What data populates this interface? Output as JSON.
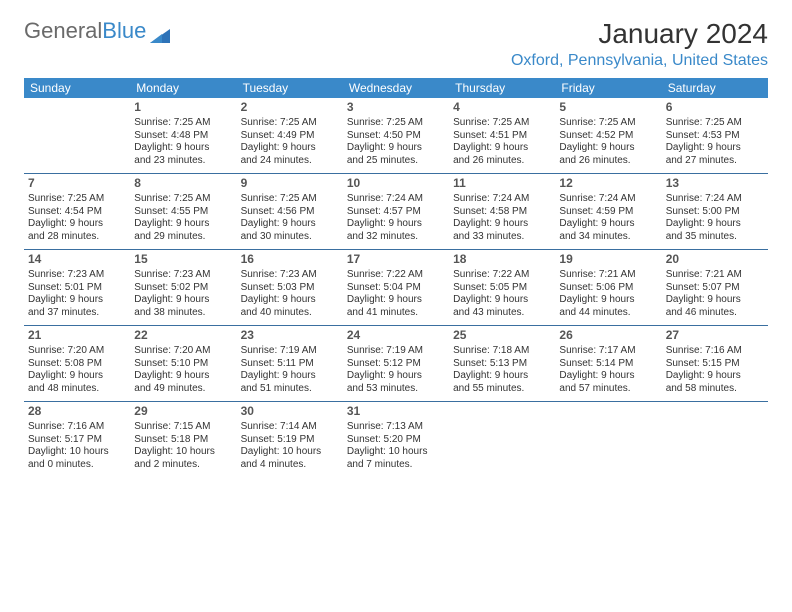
{
  "brand": {
    "part1": "General",
    "part2": "Blue"
  },
  "title": "January 2024",
  "location": "Oxford, Pennsylvania, United States",
  "colors": {
    "header_bg": "#3a89c9",
    "header_text": "#ffffff",
    "rule": "#3a6fa0",
    "body_text": "#333333",
    "logo_gray": "#6a6a6a"
  },
  "weekdays": [
    "Sunday",
    "Monday",
    "Tuesday",
    "Wednesday",
    "Thursday",
    "Friday",
    "Saturday"
  ],
  "weeks": [
    [
      null,
      {
        "n": "1",
        "sr": "7:25 AM",
        "ss": "4:48 PM",
        "d1": "Daylight: 9 hours",
        "d2": "and 23 minutes."
      },
      {
        "n": "2",
        "sr": "7:25 AM",
        "ss": "4:49 PM",
        "d1": "Daylight: 9 hours",
        "d2": "and 24 minutes."
      },
      {
        "n": "3",
        "sr": "7:25 AM",
        "ss": "4:50 PM",
        "d1": "Daylight: 9 hours",
        "d2": "and 25 minutes."
      },
      {
        "n": "4",
        "sr": "7:25 AM",
        "ss": "4:51 PM",
        "d1": "Daylight: 9 hours",
        "d2": "and 26 minutes."
      },
      {
        "n": "5",
        "sr": "7:25 AM",
        "ss": "4:52 PM",
        "d1": "Daylight: 9 hours",
        "d2": "and 26 minutes."
      },
      {
        "n": "6",
        "sr": "7:25 AM",
        "ss": "4:53 PM",
        "d1": "Daylight: 9 hours",
        "d2": "and 27 minutes."
      }
    ],
    [
      {
        "n": "7",
        "sr": "7:25 AM",
        "ss": "4:54 PM",
        "d1": "Daylight: 9 hours",
        "d2": "and 28 minutes."
      },
      {
        "n": "8",
        "sr": "7:25 AM",
        "ss": "4:55 PM",
        "d1": "Daylight: 9 hours",
        "d2": "and 29 minutes."
      },
      {
        "n": "9",
        "sr": "7:25 AM",
        "ss": "4:56 PM",
        "d1": "Daylight: 9 hours",
        "d2": "and 30 minutes."
      },
      {
        "n": "10",
        "sr": "7:24 AM",
        "ss": "4:57 PM",
        "d1": "Daylight: 9 hours",
        "d2": "and 32 minutes."
      },
      {
        "n": "11",
        "sr": "7:24 AM",
        "ss": "4:58 PM",
        "d1": "Daylight: 9 hours",
        "d2": "and 33 minutes."
      },
      {
        "n": "12",
        "sr": "7:24 AM",
        "ss": "4:59 PM",
        "d1": "Daylight: 9 hours",
        "d2": "and 34 minutes."
      },
      {
        "n": "13",
        "sr": "7:24 AM",
        "ss": "5:00 PM",
        "d1": "Daylight: 9 hours",
        "d2": "and 35 minutes."
      }
    ],
    [
      {
        "n": "14",
        "sr": "7:23 AM",
        "ss": "5:01 PM",
        "d1": "Daylight: 9 hours",
        "d2": "and 37 minutes."
      },
      {
        "n": "15",
        "sr": "7:23 AM",
        "ss": "5:02 PM",
        "d1": "Daylight: 9 hours",
        "d2": "and 38 minutes."
      },
      {
        "n": "16",
        "sr": "7:23 AM",
        "ss": "5:03 PM",
        "d1": "Daylight: 9 hours",
        "d2": "and 40 minutes."
      },
      {
        "n": "17",
        "sr": "7:22 AM",
        "ss": "5:04 PM",
        "d1": "Daylight: 9 hours",
        "d2": "and 41 minutes."
      },
      {
        "n": "18",
        "sr": "7:22 AM",
        "ss": "5:05 PM",
        "d1": "Daylight: 9 hours",
        "d2": "and 43 minutes."
      },
      {
        "n": "19",
        "sr": "7:21 AM",
        "ss": "5:06 PM",
        "d1": "Daylight: 9 hours",
        "d2": "and 44 minutes."
      },
      {
        "n": "20",
        "sr": "7:21 AM",
        "ss": "5:07 PM",
        "d1": "Daylight: 9 hours",
        "d2": "and 46 minutes."
      }
    ],
    [
      {
        "n": "21",
        "sr": "7:20 AM",
        "ss": "5:08 PM",
        "d1": "Daylight: 9 hours",
        "d2": "and 48 minutes."
      },
      {
        "n": "22",
        "sr": "7:20 AM",
        "ss": "5:10 PM",
        "d1": "Daylight: 9 hours",
        "d2": "and 49 minutes."
      },
      {
        "n": "23",
        "sr": "7:19 AM",
        "ss": "5:11 PM",
        "d1": "Daylight: 9 hours",
        "d2": "and 51 minutes."
      },
      {
        "n": "24",
        "sr": "7:19 AM",
        "ss": "5:12 PM",
        "d1": "Daylight: 9 hours",
        "d2": "and 53 minutes."
      },
      {
        "n": "25",
        "sr": "7:18 AM",
        "ss": "5:13 PM",
        "d1": "Daylight: 9 hours",
        "d2": "and 55 minutes."
      },
      {
        "n": "26",
        "sr": "7:17 AM",
        "ss": "5:14 PM",
        "d1": "Daylight: 9 hours",
        "d2": "and 57 minutes."
      },
      {
        "n": "27",
        "sr": "7:16 AM",
        "ss": "5:15 PM",
        "d1": "Daylight: 9 hours",
        "d2": "and 58 minutes."
      }
    ],
    [
      {
        "n": "28",
        "sr": "7:16 AM",
        "ss": "5:17 PM",
        "d1": "Daylight: 10 hours",
        "d2": "and 0 minutes."
      },
      {
        "n": "29",
        "sr": "7:15 AM",
        "ss": "5:18 PM",
        "d1": "Daylight: 10 hours",
        "d2": "and 2 minutes."
      },
      {
        "n": "30",
        "sr": "7:14 AM",
        "ss": "5:19 PM",
        "d1": "Daylight: 10 hours",
        "d2": "and 4 minutes."
      },
      {
        "n": "31",
        "sr": "7:13 AM",
        "ss": "5:20 PM",
        "d1": "Daylight: 10 hours",
        "d2": "and 7 minutes."
      },
      null,
      null,
      null
    ]
  ],
  "labels": {
    "sunrise": "Sunrise: ",
    "sunset": "Sunset: "
  }
}
